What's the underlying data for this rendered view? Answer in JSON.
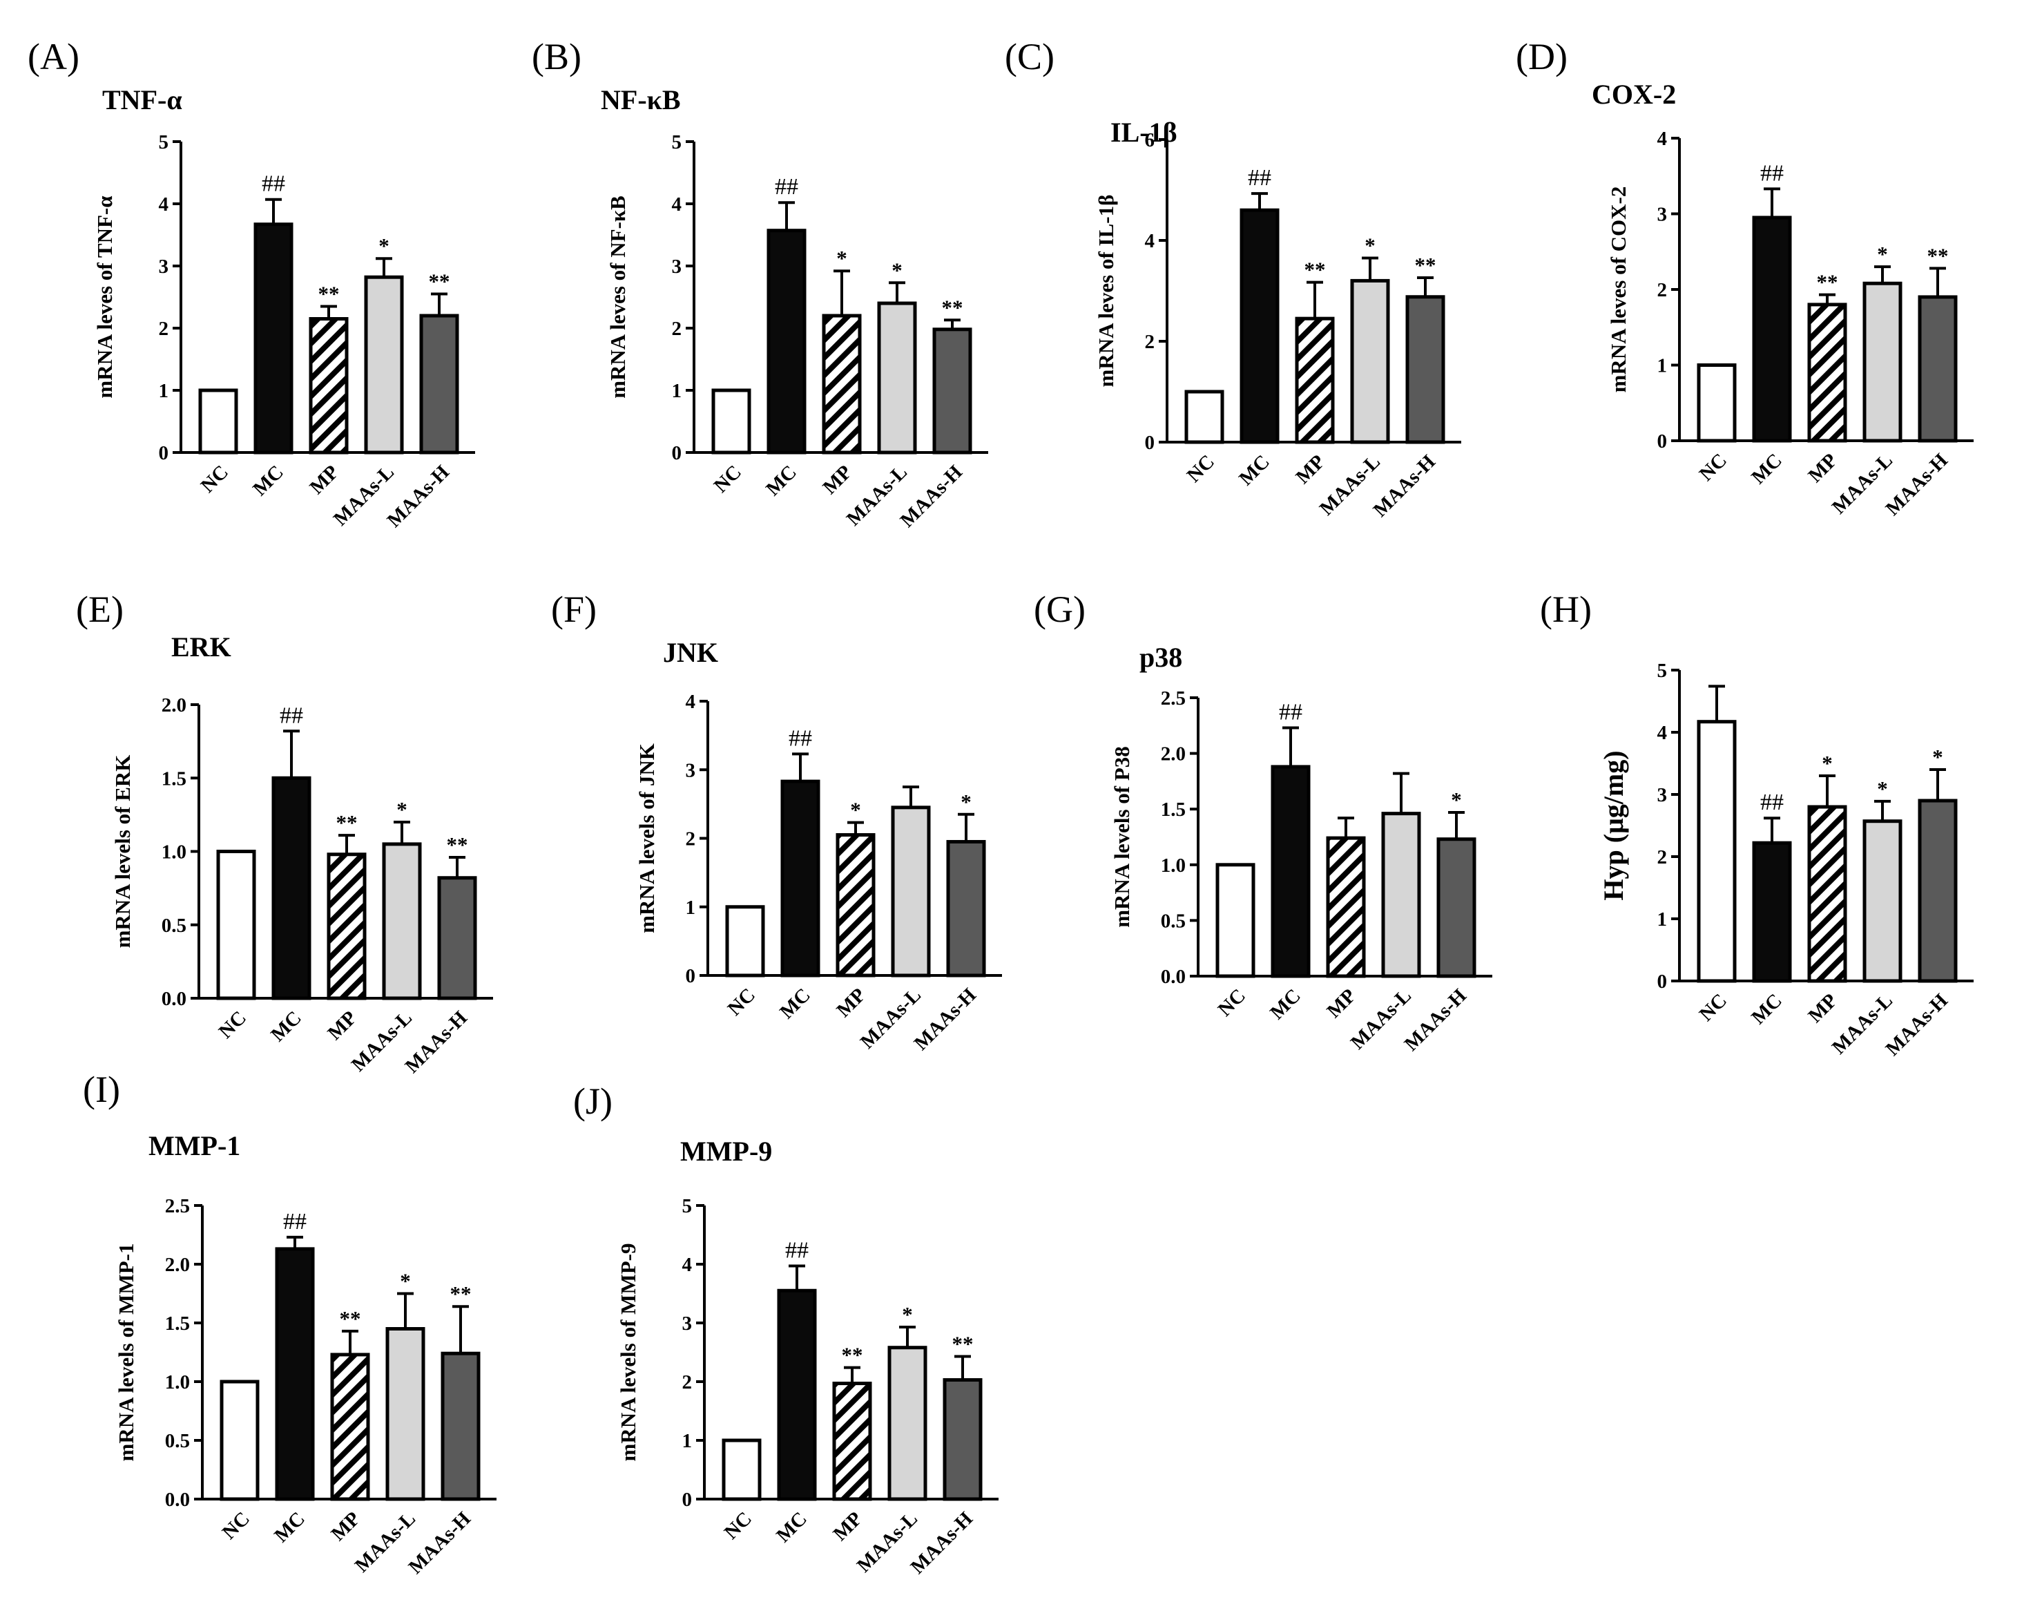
{
  "figure": {
    "description_label": "Multi-panel bar chart figure"
  },
  "styles": {
    "NC": "#ffffff",
    "MC": "#0a0a0a",
    "MP": "hatch",
    "MAAs-L": "#d6d6d6",
    "MAAs-H": "#5a5a5a"
  },
  "chart_data": [
    {
      "panel": "(A)",
      "type": "bar",
      "title": "TNF-α",
      "ylabel": "mRNA leves of TNF-α",
      "categories": [
        "NC",
        "MC",
        "MP",
        "MAAs-L",
        "MAAs-H"
      ],
      "values": [
        1.0,
        3.67,
        2.15,
        2.82,
        2.2
      ],
      "errors": [
        0,
        0.4,
        0.2,
        0.3,
        0.35
      ],
      "significance": [
        "",
        "##",
        "**",
        "*",
        "**"
      ],
      "ylim": [
        0,
        5
      ],
      "yticks": [
        "0",
        "1",
        "2",
        "3",
        "4",
        "5"
      ]
    },
    {
      "panel": "(B)",
      "type": "bar",
      "title": "NF-κB",
      "ylabel": "mRNA leves of NF-κB",
      "categories": [
        "NC",
        "MC",
        "MP",
        "MAAs-L",
        "MAAs-H"
      ],
      "values": [
        1.0,
        3.57,
        2.2,
        2.4,
        1.98
      ],
      "errors": [
        0,
        0.45,
        0.72,
        0.33,
        0.15
      ],
      "significance": [
        "",
        "##",
        "*",
        "*",
        "**"
      ],
      "ylim": [
        0,
        5
      ],
      "yticks": [
        "0",
        "1",
        "2",
        "3",
        "4",
        "5"
      ]
    },
    {
      "panel": "(C)",
      "type": "bar",
      "title": "IL-1β",
      "ylabel": "mRNA leves of IL-1β",
      "categories": [
        "NC",
        "MC",
        "MP",
        "MAAs-L",
        "MAAs-H"
      ],
      "values": [
        1.0,
        4.6,
        2.45,
        3.2,
        2.88
      ],
      "errors": [
        0,
        0.33,
        0.72,
        0.45,
        0.38
      ],
      "significance": [
        "",
        "##",
        "**",
        "*",
        "**"
      ],
      "ylim": [
        0,
        6
      ],
      "yticks": [
        "0",
        "2",
        "4",
        "6"
      ]
    },
    {
      "panel": "(D)",
      "type": "bar",
      "title": "COX-2",
      "ylabel": "mRNA leves of COX-2",
      "categories": [
        "NC",
        "MC",
        "MP",
        "MAAs-L",
        "MAAs-H"
      ],
      "values": [
        1.0,
        2.95,
        1.8,
        2.08,
        1.9
      ],
      "errors": [
        0,
        0.38,
        0.13,
        0.22,
        0.38
      ],
      "significance": [
        "",
        "##",
        "**",
        "*",
        "**"
      ],
      "ylim": [
        0,
        4
      ],
      "yticks": [
        "0",
        "1",
        "2",
        "3",
        "4"
      ]
    },
    {
      "panel": "(E)",
      "type": "bar",
      "title": "ERK",
      "ylabel": "mRNA levels of ERK",
      "categories": [
        "NC",
        "MC",
        "MP",
        "MAAs-L",
        "MAAs-H"
      ],
      "values": [
        1.0,
        1.5,
        0.98,
        1.05,
        0.82
      ],
      "errors": [
        0,
        0.32,
        0.13,
        0.15,
        0.14
      ],
      "significance": [
        "",
        "##",
        "**",
        "*",
        "**"
      ],
      "ylim": [
        0,
        2.0
      ],
      "yticks": [
        "0.0",
        "0.5",
        "1.0",
        "1.5",
        "2.0"
      ]
    },
    {
      "panel": "(F)",
      "type": "bar",
      "title": "JNK",
      "ylabel": "mRNA levels of JNK",
      "categories": [
        "NC",
        "MC",
        "MP",
        "MAAs-L",
        "MAAs-H"
      ],
      "values": [
        1.0,
        2.83,
        2.05,
        2.45,
        1.95
      ],
      "errors": [
        0,
        0.4,
        0.18,
        0.3,
        0.4
      ],
      "significance": [
        "",
        "##",
        "*",
        "",
        "*"
      ],
      "ylim": [
        0,
        4
      ],
      "yticks": [
        "0",
        "1",
        "2",
        "3",
        "4"
      ]
    },
    {
      "panel": "(G)",
      "type": "bar",
      "title": "p38",
      "ylabel": "mRNA levels of P38",
      "categories": [
        "NC",
        "MC",
        "MP",
        "MAAs-L",
        "MAAs-H"
      ],
      "values": [
        1.0,
        1.88,
        1.24,
        1.46,
        1.23
      ],
      "errors": [
        0,
        0.35,
        0.18,
        0.36,
        0.24
      ],
      "significance": [
        "",
        "##",
        "",
        "",
        "*"
      ],
      "ylim": [
        0,
        2.5
      ],
      "yticks": [
        "0.0",
        "0.5",
        "1.0",
        "1.5",
        "2.0",
        "2.5"
      ]
    },
    {
      "panel": "(H)",
      "type": "bar",
      "title": "",
      "ylabel": "Hyp (μg/mg)",
      "categories": [
        "NC",
        "MC",
        "MP",
        "MAAs-L",
        "MAAs-H"
      ],
      "values": [
        4.17,
        2.22,
        2.8,
        2.57,
        2.9
      ],
      "errors": [
        0.57,
        0.4,
        0.5,
        0.32,
        0.5
      ],
      "significance": [
        "",
        "##",
        "*",
        "*",
        "*"
      ],
      "ylim": [
        0,
        5
      ],
      "yticks": [
        "0",
        "1",
        "2",
        "3",
        "4",
        "5"
      ]
    },
    {
      "panel": "(I)",
      "type": "bar",
      "title": "MMP-1",
      "ylabel": "mRNA levels of MMP-1",
      "categories": [
        "NC",
        "MC",
        "MP",
        "MAAs-L",
        "MAAs-H"
      ],
      "values": [
        1.0,
        2.13,
        1.23,
        1.45,
        1.24
      ],
      "errors": [
        0,
        0.1,
        0.2,
        0.3,
        0.4
      ],
      "significance": [
        "",
        "##",
        "**",
        "*",
        "**"
      ],
      "ylim": [
        0,
        2.5
      ],
      "yticks": [
        "0.0",
        "0.5",
        "1.0",
        "1.5",
        "2.0",
        "2.5"
      ]
    },
    {
      "panel": "(J)",
      "type": "bar",
      "title": "MMP-9",
      "ylabel": "mRNA levels of MMP-9",
      "categories": [
        "NC",
        "MC",
        "MP",
        "MAAs-L",
        "MAAs-H"
      ],
      "values": [
        1.0,
        3.55,
        1.97,
        2.58,
        2.03
      ],
      "errors": [
        0,
        0.42,
        0.27,
        0.35,
        0.4
      ],
      "significance": [
        "",
        "##",
        "**",
        "*",
        "**"
      ],
      "ylim": [
        0,
        5
      ],
      "yticks": [
        "0",
        "1",
        "2",
        "3",
        "4",
        "5"
      ]
    }
  ]
}
